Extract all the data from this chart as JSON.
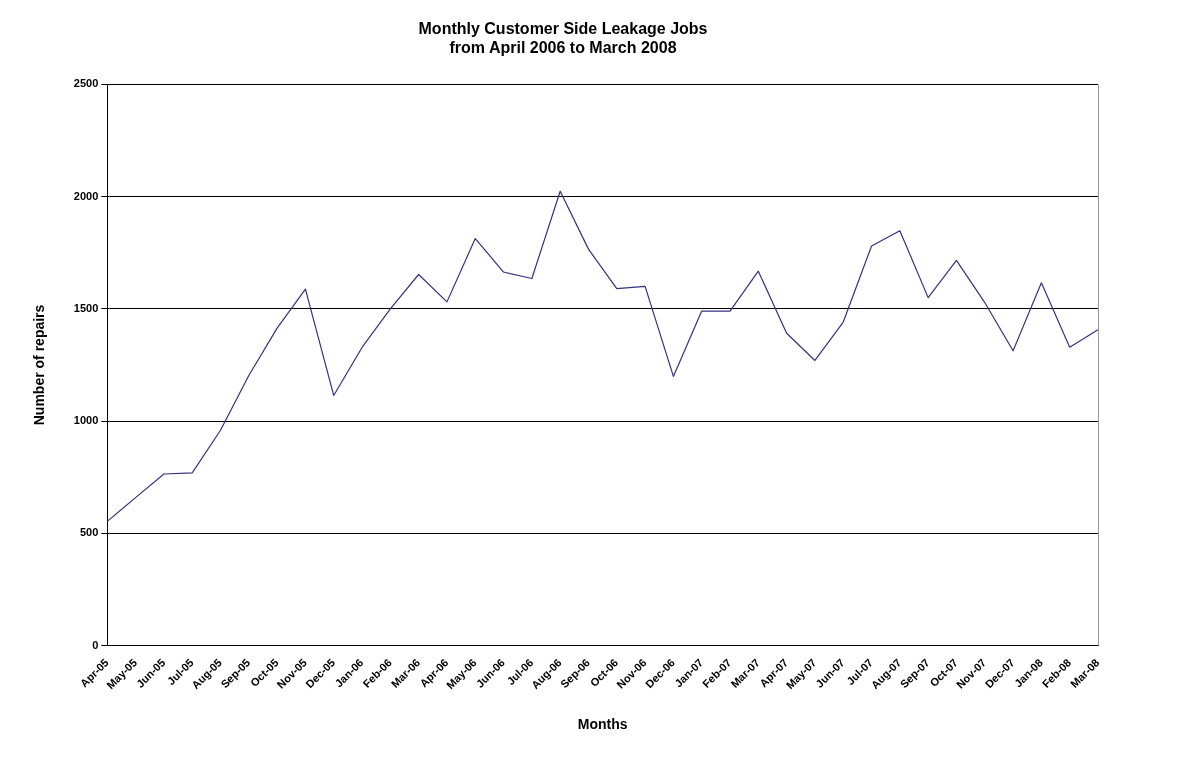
{
  "chart_data": {
    "type": "line",
    "title": "Monthly Customer Side Leakage Jobs",
    "subtitle": "from April 2006 to March 2008",
    "xlabel": "Months",
    "ylabel": "Number of repairs",
    "categories": [
      "Apr-05",
      "May-05",
      "Jun-05",
      "Jul-05",
      "Aug-05",
      "Sep-05",
      "Oct-05",
      "Nov-05",
      "Dec-05",
      "Jan-06",
      "Feb-06",
      "Mar-06",
      "Apr-06",
      "May-06",
      "Jun-06",
      "Jul-06",
      "Aug-06",
      "Sep-06",
      "Oct-06",
      "Nov-06",
      "Dec-06",
      "Jan-07",
      "Feb-07",
      "Mar-07",
      "Apr-07",
      "May-07",
      "Jun-07",
      "Jul-07",
      "Aug-07",
      "Sep-07",
      "Oct-07",
      "Nov-07",
      "Dec-07",
      "Jan-08",
      "Feb-08",
      "Mar-08"
    ],
    "series": [
      {
        "color": "#333380",
        "values": [
          553,
          659,
          764,
          769,
          959,
          1203,
          1414,
          1588,
          1114,
          1328,
          1500,
          1653,
          1531,
          1813,
          1664,
          1635,
          2024,
          1766,
          1590,
          1600,
          1199,
          1490,
          1490,
          1668,
          1391,
          1270,
          1441,
          1780,
          1848,
          1550,
          1716,
          1528,
          1313,
          1616,
          1329,
          1407
        ]
      }
    ],
    "ylim": [
      0,
      2500
    ],
    "yticks": [
      0,
      500,
      1000,
      1500,
      2000,
      2500
    ],
    "grid": "y",
    "legend": false,
    "marker": "none",
    "line_style": "solid"
  }
}
